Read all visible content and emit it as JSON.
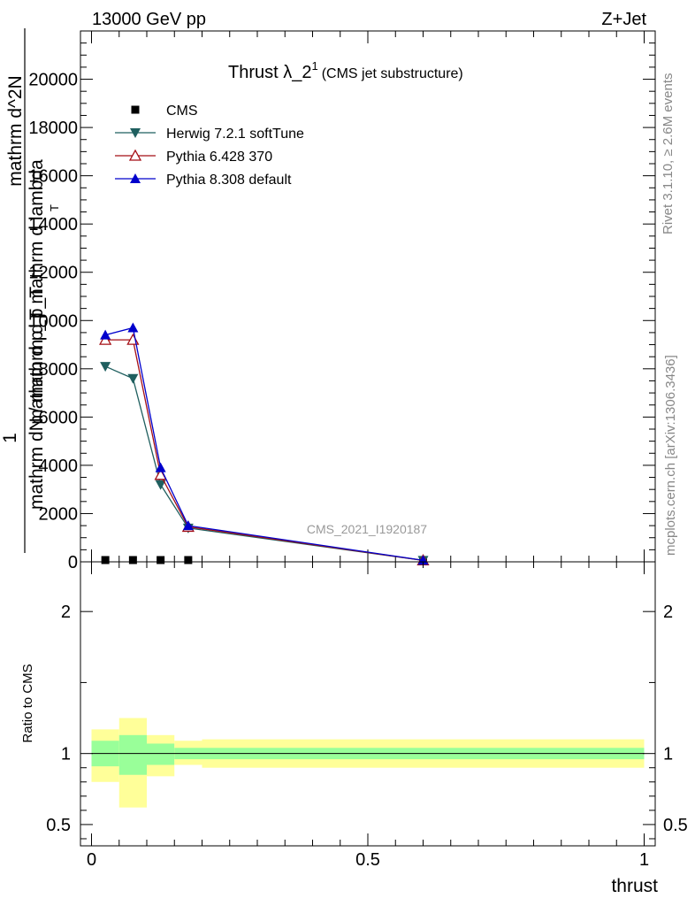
{
  "header": {
    "left": "13000 GeV pp",
    "right": "Z+Jet"
  },
  "side": {
    "rivet": "Rivet 3.1.10, ≥ 2.6M events",
    "mcplots": "mcplots.cern.ch [arXiv:1306.3436]"
  },
  "watermark": "CMS_2021_I1920187",
  "title": {
    "main": "Thrust λ_2",
    "sup": "1",
    "sub": "(CMS jet substructure)"
  },
  "ylabel": {
    "numerator": "1",
    "denominator_top": "mathrm d^2N",
    "denominator_line1": "mathrm dN / mathrm d p_T",
    "denominator_line2": "mathrm d p_T mathrm d lambda",
    "subscript_T": "T"
  },
  "ratio_ylabel": "Ratio to CMS",
  "xlabel": "thrust",
  "legend": [
    {
      "label": "CMS",
      "color": "#000000",
      "marker": "square"
    },
    {
      "label": "Herwig 7.2.1 softTune",
      "color": "#1f5f5f",
      "marker": "triangle-down"
    },
    {
      "label": "Pythia 6.428 370",
      "color": "#a50f15",
      "marker": "triangle-up-open"
    },
    {
      "label": "Pythia 8.308 default",
      "color": "#0000cc",
      "marker": "triangle-up"
    }
  ],
  "chart_data": {
    "type": "line",
    "xlim": [
      -0.02,
      1.02
    ],
    "main": {
      "ylim": [
        0,
        22000
      ],
      "yticks": [
        0,
        2000,
        4000,
        6000,
        8000,
        10000,
        12000,
        14000,
        16000,
        18000,
        20000
      ],
      "ytick_labels": [
        "0",
        "2000",
        "4000",
        "6000",
        "8000",
        "10000",
        "12000",
        "14000",
        "16000",
        "18000",
        "20000"
      ],
      "series": [
        {
          "name": "CMS",
          "x": [
            0.025,
            0.075,
            0.125,
            0.175,
            0.6
          ],
          "y": [
            20,
            20,
            20,
            20,
            20
          ]
        },
        {
          "name": "Herwig 7.2.1 softTune",
          "x": [
            0.025,
            0.075,
            0.125,
            0.175,
            0.6
          ],
          "y": [
            8100,
            7600,
            3200,
            1400,
            60
          ]
        },
        {
          "name": "Pythia 6.428 370",
          "x": [
            0.025,
            0.075,
            0.125,
            0.175,
            0.6
          ],
          "y": [
            9200,
            9200,
            3600,
            1450,
            60
          ]
        },
        {
          "name": "Pythia 8.308 default",
          "x": [
            0.025,
            0.075,
            0.125,
            0.175,
            0.6
          ],
          "y": [
            9400,
            9700,
            3900,
            1500,
            65
          ]
        }
      ]
    },
    "ratio": {
      "ylim": [
        0.35,
        2.35
      ],
      "yticks": [
        0.5,
        1,
        2
      ],
      "ytick_labels": [
        "0.5",
        "1",
        "2"
      ],
      "reference": 1,
      "bands": [
        {
          "x0": 0.0,
          "x1": 0.05,
          "green": [
            0.91,
            1.09
          ],
          "yellow": [
            0.8,
            1.17
          ]
        },
        {
          "x0": 0.05,
          "x1": 0.1,
          "green": [
            0.85,
            1.13
          ],
          "yellow": [
            0.62,
            1.25
          ]
        },
        {
          "x0": 0.1,
          "x1": 0.15,
          "green": [
            0.92,
            1.07
          ],
          "yellow": [
            0.84,
            1.13
          ]
        },
        {
          "x0": 0.15,
          "x1": 0.2,
          "green": [
            0.96,
            1.04
          ],
          "yellow": [
            0.92,
            1.09
          ]
        },
        {
          "x0": 0.2,
          "x1": 1.0,
          "green": [
            0.96,
            1.04
          ],
          "yellow": [
            0.9,
            1.1
          ]
        }
      ]
    },
    "xticks": [
      0,
      0.5,
      1
    ],
    "xtick_labels": [
      "0",
      "0.5",
      "1"
    ],
    "xlabel": "thrust",
    "grid": false,
    "legend_position": "top-left"
  }
}
